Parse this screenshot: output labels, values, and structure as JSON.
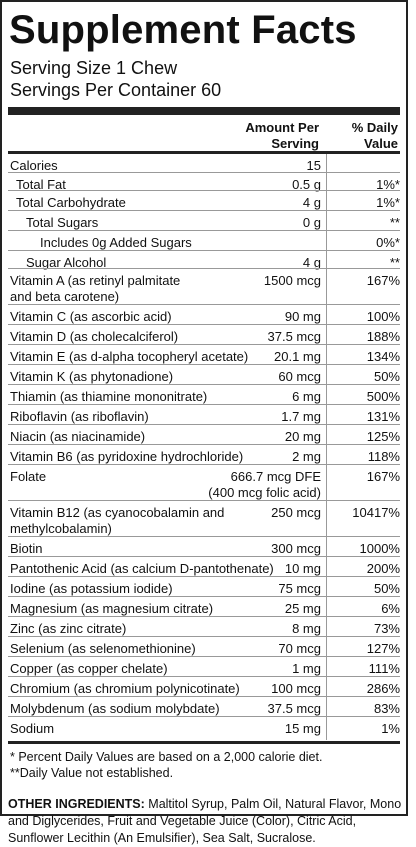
{
  "title": "Supplement Facts",
  "serving_size": "Serving Size 1 Chew",
  "servings_per_container": "Servings Per Container 60",
  "headers": {
    "amount_line1": "Amount Per",
    "amount_line2": "Serving",
    "dv_line1": "% Daily",
    "dv_line2": "Value"
  },
  "rows": [
    {
      "name": "Calories",
      "amount": "15",
      "dv": ""
    },
    {
      "name": "Total Fat",
      "amount": "0.5 g",
      "dv": "1%*"
    },
    {
      "name": "Total Carbohydrate",
      "amount": "4 g",
      "dv": "1%*"
    },
    {
      "name": "Total Sugars",
      "amount": "0 g",
      "dv": "**"
    },
    {
      "name": "Includes 0g Added Sugars",
      "amount": "",
      "dv": "0%*"
    },
    {
      "name": "Sugar Alcohol",
      "amount": "4 g",
      "dv": "**"
    },
    {
      "name": "Vitamin A (as retinyl palmitate",
      "name2": "and beta carotene)",
      "amount": "1500 mcg",
      "dv": "167%"
    },
    {
      "name": "Vitamin C (as ascorbic acid)",
      "amount": "90 mg",
      "dv": "100%"
    },
    {
      "name": "Vitamin D (as cholecalciferol)",
      "amount": "37.5 mcg",
      "dv": "188%"
    },
    {
      "name": "Vitamin E (as d-alpha tocopheryl acetate)",
      "amount": "20.1 mg",
      "dv": "134%"
    },
    {
      "name": "Vitamin K (as phytonadione)",
      "amount": "60 mcg",
      "dv": "50%"
    },
    {
      "name": "Thiamin (as thiamine mononitrate)",
      "amount": "6 mg",
      "dv": "500%"
    },
    {
      "name": "Riboflavin (as riboflavin)",
      "amount": "1.7 mg",
      "dv": "131%"
    },
    {
      "name": "Niacin (as niacinamide)",
      "amount": "20 mg",
      "dv": "125%"
    },
    {
      "name": "Vitamin B6 (as pyridoxine hydrochloride)",
      "amount": "2 mg",
      "dv": "118%"
    },
    {
      "name": "Folate",
      "amount": "666.7 mcg DFE",
      "amount2": "(400 mcg folic acid)",
      "dv": "167%"
    },
    {
      "name": "Vitamin B12 (as cyanocobalamin and",
      "name2": "methylcobalamin)",
      "amount": "250 mcg",
      "dv": "10417%"
    },
    {
      "name": "Biotin",
      "amount": "300 mcg",
      "dv": "1000%"
    },
    {
      "name": "Pantothenic Acid (as calcium D-pantothenate)",
      "amount": "10 mg",
      "dv": "200%"
    },
    {
      "name": "Iodine (as potassium iodide)",
      "amount": "75 mcg",
      "dv": "50%"
    },
    {
      "name": "Magnesium (as magnesium citrate)",
      "amount": "25 mg",
      "dv": "6%"
    },
    {
      "name": "Zinc (as zinc citrate)",
      "amount": "8 mg",
      "dv": "73%"
    },
    {
      "name": "Selenium (as selenomethionine)",
      "amount": "70 mcg",
      "dv": "127%"
    },
    {
      "name": "Copper (as copper chelate)",
      "amount": "1 mg",
      "dv": "111%"
    },
    {
      "name": "Chromium (as chromium polynicotinate)",
      "amount": "100 mcg",
      "dv": "286%"
    },
    {
      "name": "Molybdenum (as sodium molybdate)",
      "amount": "37.5 mcg",
      "dv": "83%"
    },
    {
      "name": "Sodium",
      "amount": "15 mg",
      "dv": "1%"
    }
  ],
  "footnote1": "* Percent Daily Values are based on a 2,000 calorie diet.",
  "footnote2": "**Daily Value not established.",
  "other_label": "OTHER INGREDIENTS:",
  "other_text": " Maltitol Syrup, Palm Oil, Natural Flavor, Mono and Diglycerides, Fruit and Vegetable Juice (Color), Citric Acid, Sunflower Lecithin (An Emulsifier), Sea Salt, Sucralose."
}
